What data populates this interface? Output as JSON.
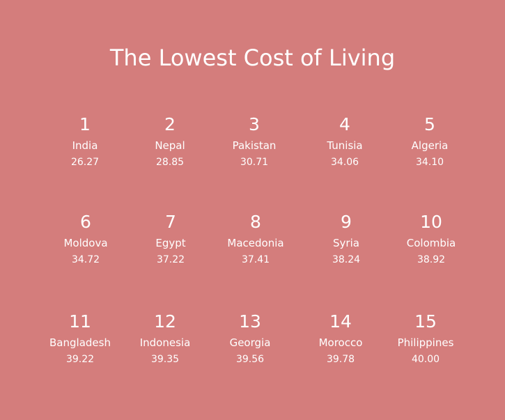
{
  "title": "The Lowest Cost of Living",
  "items": [
    {
      "rank": "1",
      "country": "India",
      "value": "26.27"
    },
    {
      "rank": "2",
      "country": "Nepal",
      "value": "28.85"
    },
    {
      "rank": "3",
      "country": "Pakistan",
      "value": "30.71"
    },
    {
      "rank": "4",
      "country": "Tunisia",
      "value": "34.06"
    },
    {
      "rank": "5",
      "country": "Algeria",
      "value": "34.10"
    },
    {
      "rank": "6",
      "country": "Moldova",
      "value": "34.72"
    },
    {
      "rank": "7",
      "country": "Egypt",
      "value": "37.22"
    },
    {
      "rank": "8",
      "country": "Macedonia",
      "value": "37.41"
    },
    {
      "rank": "9",
      "country": "Syria",
      "value": "38.24"
    },
    {
      "rank": "10",
      "country": "Colombia",
      "value": "38.92"
    },
    {
      "rank": "11",
      "country": "Bangladesh",
      "value": "39.22"
    },
    {
      "rank": "12",
      "country": "Indonesia",
      "value": "39.35"
    },
    {
      "rank": "13",
      "country": "Georgia",
      "value": "39.56"
    },
    {
      "rank": "14",
      "country": "Morocco",
      "value": "39.78"
    },
    {
      "rank": "15",
      "country": "Philippines",
      "value": "40.00"
    }
  ]
}
